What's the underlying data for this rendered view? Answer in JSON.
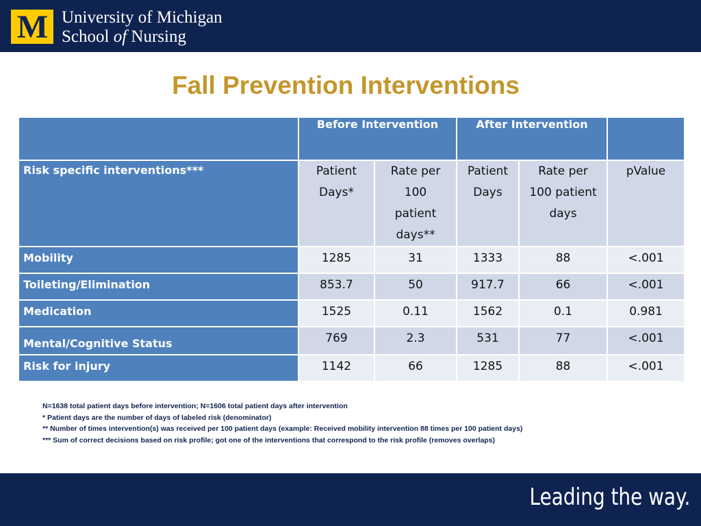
{
  "header": {
    "logo_letter": "M",
    "school_line1": "University of Michigan",
    "school_line2_pre": "School ",
    "school_line2_italic": "of",
    "school_line2_post": " Nursing",
    "colors": {
      "navy": "#0f2350",
      "maize": "#ffcb05"
    }
  },
  "slide": {
    "title": "Fall Prevention Interventions",
    "title_color": "#c4962c"
  },
  "table": {
    "group_headers": [
      "",
      "Before Intervention",
      "After Intervention",
      ""
    ],
    "row_label_header": "Risk specific interventions***",
    "sub_headers": [
      [
        "Patient",
        "Days*"
      ],
      [
        "Rate per",
        "100",
        "patient",
        "days**"
      ],
      [
        "Patient",
        "Days"
      ],
      [
        "Rate per",
        "100 patient",
        "days"
      ],
      [
        "pValue"
      ]
    ],
    "rows": [
      {
        "label": "Mobility",
        "values": [
          "1285",
          "31",
          "1333",
          "88",
          "<.001"
        ]
      },
      {
        "label": "Toileting/Elimination",
        "values": [
          "853.7",
          "50",
          "917.7",
          "66",
          "<.001"
        ]
      },
      {
        "label": "Medication",
        "values": [
          "1525",
          "0.11",
          "1562",
          "0.1",
          "0.981"
        ]
      },
      {
        "label": "Mental/Cognitive Status",
        "values": [
          "769",
          "2.3",
          "531",
          "77",
          "<.001"
        ]
      },
      {
        "label": "Risk for injury",
        "values": [
          "1142",
          "66",
          "1285",
          "88",
          "<.001"
        ]
      }
    ],
    "colors": {
      "header": "#4f81bd",
      "cell_dark": "#d0d8e8",
      "cell_light": "#e9edf4"
    }
  },
  "footnotes": [
    "N=1638 total patient days before intervention; N=1606 total patient days after intervention",
    "* Patient days are the number of days of labeled risk (denominator)",
    "** Number of times intervention(s) was received per 100 patient days (example:  Received mobility intervention 88 times per 100 patient days)",
    "*** Sum of correct decisions based on risk profile; got one of the interventions that correspond to the risk profile (removes overlaps)"
  ],
  "footer": {
    "tagline": "Leading the way."
  }
}
